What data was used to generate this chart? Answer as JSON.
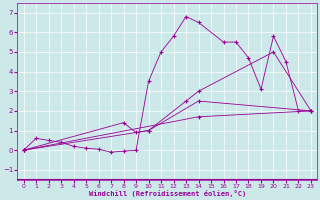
{
  "bg_color": "#cce8e8",
  "grid_color": "#ffffff",
  "line_color": "#990099",
  "marker": "+",
  "xlabel": "Windchill (Refroidissement éolien,°C)",
  "xlim": [
    -0.5,
    23.5
  ],
  "ylim": [
    -1.5,
    7.5
  ],
  "yticks": [
    -1,
    0,
    1,
    2,
    3,
    4,
    5,
    6,
    7
  ],
  "xticks": [
    0,
    1,
    2,
    3,
    4,
    5,
    6,
    7,
    8,
    9,
    10,
    11,
    12,
    13,
    14,
    15,
    16,
    17,
    18,
    19,
    20,
    21,
    22,
    23
  ],
  "lines": [
    {
      "x": [
        0,
        1,
        2,
        3,
        4,
        5,
        6,
        7,
        8,
        9,
        10,
        11,
        12,
        13,
        14,
        16,
        17,
        18,
        19,
        20,
        21,
        22,
        23
      ],
      "y": [
        0,
        0.6,
        0.5,
        0.4,
        0.2,
        0.1,
        0.05,
        -0.1,
        -0.05,
        0.0,
        3.5,
        5.0,
        5.8,
        6.8,
        6.5,
        5.5,
        5.5,
        4.7,
        3.1,
        5.8,
        4.5,
        2.0,
        2.0
      ]
    },
    {
      "x": [
        0,
        10,
        13,
        14,
        20,
        23
      ],
      "y": [
        0,
        1.0,
        2.5,
        3.0,
        5.0,
        2.0
      ]
    },
    {
      "x": [
        0,
        8,
        9,
        10,
        14,
        23
      ],
      "y": [
        0,
        1.4,
        0.9,
        1.0,
        2.5,
        2.0
      ]
    },
    {
      "x": [
        0,
        14,
        23
      ],
      "y": [
        0,
        1.7,
        2.0
      ]
    }
  ]
}
